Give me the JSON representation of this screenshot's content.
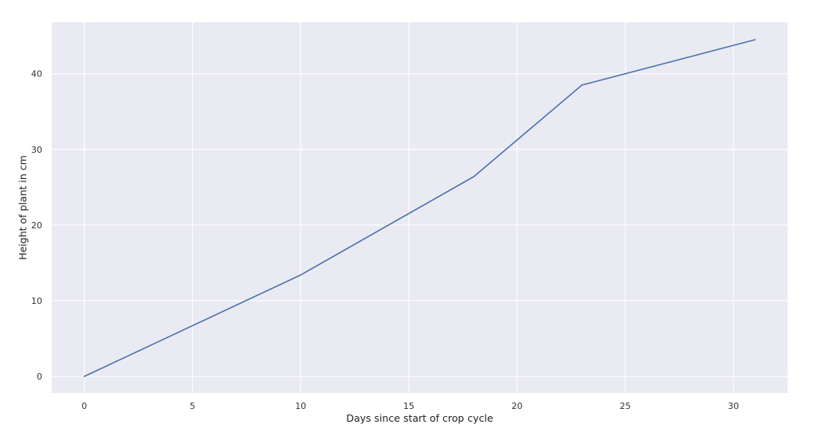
{
  "chart_data": {
    "type": "line",
    "title": "",
    "xlabel": "Days since start of crop cycle",
    "ylabel": "Height of plant in cm",
    "xlim": [
      -1.5,
      32.5
    ],
    "ylim": [
      -2.2,
      46.8
    ],
    "xticks": [
      0,
      5,
      10,
      15,
      20,
      25,
      30
    ],
    "yticks": [
      0,
      10,
      20,
      30,
      40
    ],
    "grid": true,
    "legend": "none",
    "background_color": "#eaeaf2",
    "grid_color": "#ffffff",
    "series": [
      {
        "color": "#4c72b0",
        "x": [
          0,
          10,
          18,
          23,
          31
        ],
        "y": [
          0,
          13.4,
          26.4,
          38.5,
          44.5
        ]
      }
    ]
  }
}
